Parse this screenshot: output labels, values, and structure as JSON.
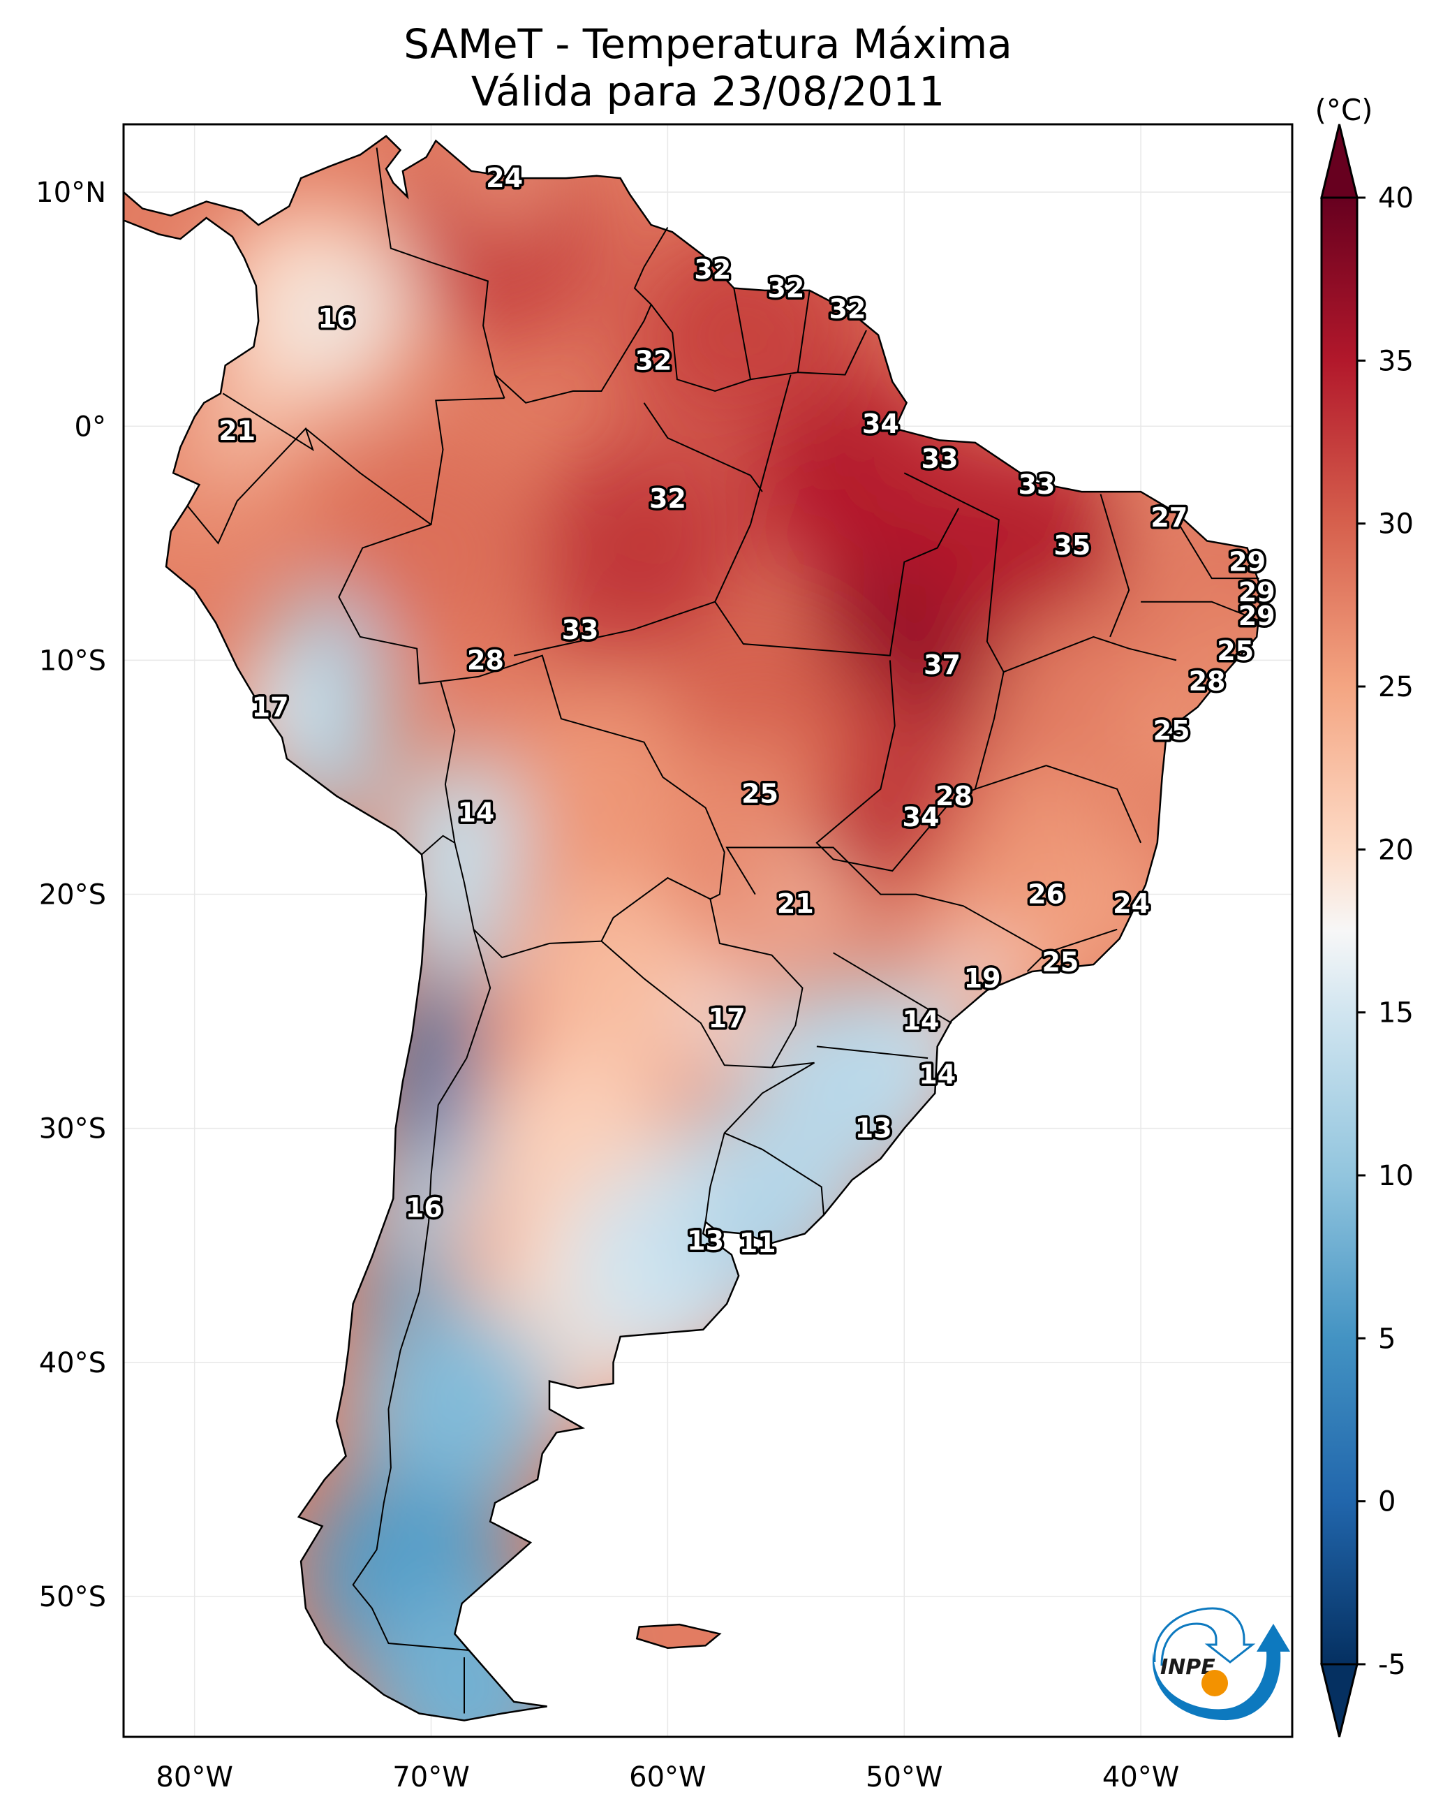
{
  "title": {
    "line1": "SAMeT - Temperatura Máxima",
    "line2": "Válida para 23/08/2011"
  },
  "chart_data": {
    "type": "heatmap",
    "subtype": "geographic map (filled contours over South America, PlateCarree)",
    "title": "SAMeT - Temperatura Máxima",
    "subtitle": "Válida para 23/08/2011",
    "variable": "Maximum temperature",
    "units": "(°C)",
    "extent": {
      "lon_min": -83.0,
      "lon_max": -33.6,
      "lat_min": -56.0,
      "lat_max": 12.9
    },
    "x_ticks": [
      {
        "lon": -80,
        "label": "80°W"
      },
      {
        "lon": -70,
        "label": "70°W"
      },
      {
        "lon": -60,
        "label": "60°W"
      },
      {
        "lon": -50,
        "label": "50°W"
      },
      {
        "lon": -40,
        "label": "40°W"
      }
    ],
    "y_ticks": [
      {
        "lat": 10,
        "label": "10°N"
      },
      {
        "lat": 0,
        "label": "0°"
      },
      {
        "lat": -10,
        "label": "10°S"
      },
      {
        "lat": -20,
        "label": "20°S"
      },
      {
        "lat": -30,
        "label": "30°S"
      },
      {
        "lat": -40,
        "label": "40°S"
      },
      {
        "lat": -50,
        "label": "50°S"
      }
    ],
    "grid": "faint",
    "colorbar": {
      "colormap": "RdBu_r",
      "vmin": -5,
      "vmax": 40,
      "extend": "both",
      "placement": "right",
      "ticks": [
        40,
        35,
        30,
        25,
        20,
        15,
        10,
        5,
        0,
        -5
      ],
      "tick_labels": [
        "40",
        "35",
        "30",
        "25",
        "20",
        "15",
        "10",
        "5",
        "0",
        "-5"
      ],
      "label": "(°C)",
      "stops": [
        {
          "v": -5,
          "color": "#053061"
        },
        {
          "v": 0,
          "color": "#2166ac"
        },
        {
          "v": 5,
          "color": "#4393c3"
        },
        {
          "v": 10,
          "color": "#92c5de"
        },
        {
          "v": 15,
          "color": "#d1e5f0"
        },
        {
          "v": 17.5,
          "color": "#f7f7f7"
        },
        {
          "v": 20,
          "color": "#fddbc7"
        },
        {
          "v": 25,
          "color": "#f4a582"
        },
        {
          "v": 30,
          "color": "#d6604d"
        },
        {
          "v": 35,
          "color": "#b2182b"
        },
        {
          "v": 40,
          "color": "#67001f"
        }
      ]
    },
    "station_labels": [
      {
        "lon": -66.9,
        "lat": 10.6,
        "value": 24
      },
      {
        "lon": -74.0,
        "lat": 4.6,
        "value": 16
      },
      {
        "lon": -78.2,
        "lat": -0.2,
        "value": 21
      },
      {
        "lon": -58.1,
        "lat": 6.7,
        "value": 32
      },
      {
        "lon": -55.0,
        "lat": 5.9,
        "value": 32
      },
      {
        "lon": -52.4,
        "lat": 5.0,
        "value": 32
      },
      {
        "lon": -60.6,
        "lat": 2.8,
        "value": 32
      },
      {
        "lon": -51.0,
        "lat": 0.1,
        "value": 34
      },
      {
        "lon": -48.5,
        "lat": -1.4,
        "value": 33
      },
      {
        "lon": -44.4,
        "lat": -2.5,
        "value": 33
      },
      {
        "lon": -60.0,
        "lat": -3.1,
        "value": 32
      },
      {
        "lon": -38.8,
        "lat": -3.9,
        "value": 27
      },
      {
        "lon": -42.9,
        "lat": -5.1,
        "value": 35
      },
      {
        "lon": -35.5,
        "lat": -5.8,
        "value": 29
      },
      {
        "lon": -35.1,
        "lat": -7.1,
        "value": 29
      },
      {
        "lon": -35.1,
        "lat": -8.1,
        "value": 29
      },
      {
        "lon": -63.7,
        "lat": -8.7,
        "value": 33
      },
      {
        "lon": -36.0,
        "lat": -9.6,
        "value": 25
      },
      {
        "lon": -67.7,
        "lat": -10.0,
        "value": 28
      },
      {
        "lon": -48.4,
        "lat": -10.2,
        "value": 37
      },
      {
        "lon": -37.2,
        "lat": -10.9,
        "value": 28
      },
      {
        "lon": -76.8,
        "lat": -12.0,
        "value": 17
      },
      {
        "lon": -38.7,
        "lat": -13.0,
        "value": 25
      },
      {
        "lon": -56.1,
        "lat": -15.7,
        "value": 25
      },
      {
        "lon": -47.9,
        "lat": -15.8,
        "value": 28
      },
      {
        "lon": -68.1,
        "lat": -16.5,
        "value": 14
      },
      {
        "lon": -49.3,
        "lat": -16.7,
        "value": 34
      },
      {
        "lon": -44.0,
        "lat": -20.0,
        "value": 26
      },
      {
        "lon": -40.4,
        "lat": -20.4,
        "value": 24
      },
      {
        "lon": -54.6,
        "lat": -20.4,
        "value": 21
      },
      {
        "lon": -43.4,
        "lat": -22.9,
        "value": 25
      },
      {
        "lon": -46.7,
        "lat": -23.6,
        "value": 19
      },
      {
        "lon": -57.5,
        "lat": -25.3,
        "value": 17
      },
      {
        "lon": -49.3,
        "lat": -25.4,
        "value": 14
      },
      {
        "lon": -48.6,
        "lat": -27.7,
        "value": 14
      },
      {
        "lon": -51.3,
        "lat": -30.0,
        "value": 13
      },
      {
        "lon": -70.3,
        "lat": -33.4,
        "value": 16
      },
      {
        "lon": -58.4,
        "lat": -34.8,
        "value": 13
      },
      {
        "lon": -56.2,
        "lat": -34.9,
        "value": 11
      }
    ],
    "temperature_regions": [
      {
        "name": "amazon-east-core",
        "lon": -49.5,
        "lat": -8.0,
        "value": 37
      },
      {
        "name": "para-north",
        "lon": -52.0,
        "lat": -2.0,
        "value": 35
      },
      {
        "name": "maranhao",
        "lon": -45.0,
        "lat": -5.0,
        "value": 35
      },
      {
        "name": "amazon-central",
        "lon": -61.0,
        "lat": -5.0,
        "value": 33
      },
      {
        "name": "goias",
        "lon": -50.0,
        "lat": -15.5,
        "value": 34
      },
      {
        "name": "venezuela-llanos",
        "lon": -67.0,
        "lat": 8.0,
        "value": 32
      },
      {
        "name": "guianas",
        "lon": -57.0,
        "lat": 4.0,
        "value": 32
      },
      {
        "name": "amazon-west",
        "lon": -70.0,
        "lat": -5.0,
        "value": 29
      },
      {
        "name": "mato-grosso",
        "lon": -56.0,
        "lat": -13.0,
        "value": 30
      },
      {
        "name": "bahia",
        "lon": -42.0,
        "lat": -12.0,
        "value": 28
      },
      {
        "name": "minas",
        "lon": -45.0,
        "lat": -19.0,
        "value": 26
      },
      {
        "name": "bolivia-lowland",
        "lon": -63.0,
        "lat": -16.0,
        "value": 26
      },
      {
        "name": "chaco",
        "lon": -62.0,
        "lat": -24.0,
        "value": 23
      },
      {
        "name": "argentina-central",
        "lon": -64.0,
        "lat": -31.0,
        "value": 21
      },
      {
        "name": "pampa-north",
        "lon": -64.0,
        "lat": -38.0,
        "value": 20
      },
      {
        "name": "south-brazil",
        "lon": -52.0,
        "lat": -28.0,
        "value": 13
      },
      {
        "name": "uruguay",
        "lon": -56.0,
        "lat": -33.0,
        "value": 13
      },
      {
        "name": "buenos-aires",
        "lon": -60.0,
        "lat": -36.0,
        "value": 15
      },
      {
        "name": "altiplano",
        "lon": -69.0,
        "lat": -19.0,
        "value": 14
      },
      {
        "name": "peru-andes",
        "lon": -74.5,
        "lat": -12.0,
        "value": 12
      },
      {
        "name": "andes-central",
        "lon": -69.8,
        "lat": -29.0,
        "value": 2
      },
      {
        "name": "andes-south",
        "lon": -71.0,
        "lat": -36.0,
        "value": 6
      },
      {
        "name": "patagonia-north",
        "lon": -69.0,
        "lat": -42.0,
        "value": 9
      },
      {
        "name": "patagonia-south",
        "lon": -71.0,
        "lat": -49.0,
        "value": 6
      },
      {
        "name": "tierra-del-fuego",
        "lon": -68.5,
        "lat": -54.0,
        "value": 8
      },
      {
        "name": "colombia-andes",
        "lon": -75.0,
        "lat": 5.0,
        "value": 20
      },
      {
        "name": "ecuador-coast",
        "lon": -80.0,
        "lat": -2.0,
        "value": 27
      },
      {
        "name": "northeast-coast",
        "lon": -36.0,
        "lat": -7.0,
        "value": 28
      }
    ]
  },
  "logo": {
    "text": "INPE",
    "colors": {
      "blue": "#0d79bf",
      "orange": "#f39200",
      "text": "#1a1a1a"
    }
  }
}
